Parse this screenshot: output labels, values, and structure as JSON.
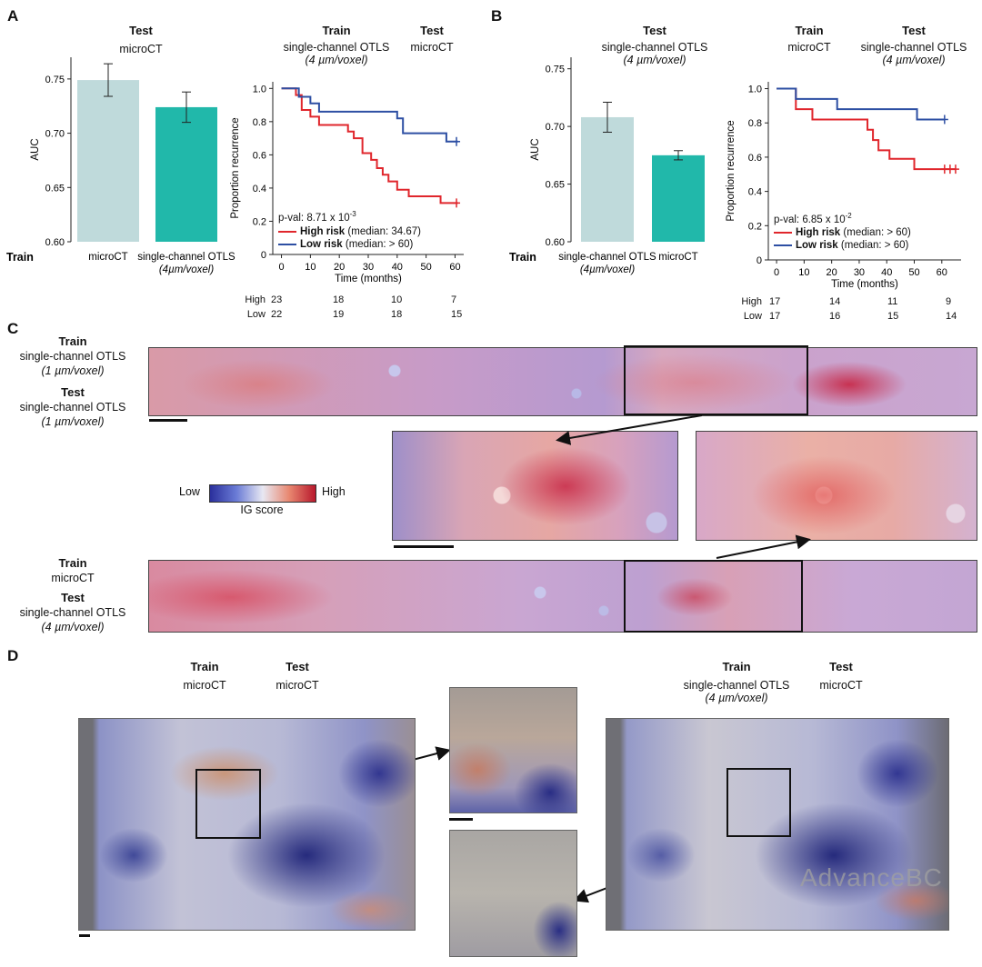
{
  "panels": {
    "A": {
      "label": "A",
      "bar": {
        "header_bold": "Test",
        "header": "microCT",
        "axis_label": "Train",
        "chart_data": {
          "type": "bar",
          "ylabel": "AUC",
          "ylim": [
            0.6,
            0.77
          ],
          "yticks": [
            "0.60",
            "0.65",
            "0.70",
            "0.75"
          ],
          "categories": [
            "microCT",
            "single-channel OTLS"
          ],
          "category_sub": [
            "",
            "(4µm/voxel)"
          ],
          "values": [
            0.749,
            0.724
          ],
          "error": [
            0.015,
            0.014
          ],
          "colors": [
            "#bfdadb",
            "#21b8aa"
          ]
        }
      },
      "km": {
        "train_bold": "Train",
        "train": "single-channel OTLS",
        "train_sub": "(4 µm/voxel)",
        "test_bold": "Test",
        "test": "microCT",
        "pval_prefix": "p-val: 8.71 x 10",
        "pval_exp": "-3",
        "legend_high_bold": "High risk",
        "legend_high": "(median: 34.67)",
        "legend_low_bold": "Low risk",
        "legend_low": "(median: > 60)",
        "risk_table": {
          "rows": [
            {
              "label": "High",
              "values": [
                "23",
                "18",
                "10",
                "7"
              ]
            },
            {
              "label": "Low",
              "values": [
                "22",
                "19",
                "18",
                "15"
              ]
            }
          ]
        },
        "chart_data": {
          "type": "line",
          "xlabel": "Time (months)",
          "ylabel": "Proportion recurrence",
          "xlim": [
            -3,
            63
          ],
          "ylim": [
            0,
            1.04
          ],
          "xticks": [
            "0",
            "10",
            "20",
            "30",
            "40",
            "50",
            "60"
          ],
          "yticks": [
            "0",
            "0.2",
            "0.4",
            "0.6",
            "0.8",
            "1.0"
          ],
          "series": [
            {
              "name": "High risk",
              "color": "#e0262c",
              "steps": [
                [
                  0,
                  1.0
                ],
                [
                  5,
                  0.96
                ],
                [
                  7,
                  0.87
                ],
                [
                  10,
                  0.83
                ],
                [
                  13,
                  0.78
                ],
                [
                  23,
                  0.74
                ],
                [
                  25,
                  0.7
                ],
                [
                  28,
                  0.61
                ],
                [
                  31,
                  0.57
                ],
                [
                  33,
                  0.52
                ],
                [
                  35,
                  0.48
                ],
                [
                  37,
                  0.44
                ],
                [
                  40,
                  0.39
                ],
                [
                  44,
                  0.35
                ],
                [
                  55,
                  0.31
                ],
                [
                  61,
                  0.31
                ]
              ],
              "censor": [
                60.5
              ]
            },
            {
              "name": "Low risk",
              "color": "#2d4fa3",
              "steps": [
                [
                  0,
                  1.0
                ],
                [
                  6,
                  0.95
                ],
                [
                  10,
                  0.91
                ],
                [
                  13,
                  0.86
                ],
                [
                  40,
                  0.82
                ],
                [
                  42,
                  0.73
                ],
                [
                  57,
                  0.68
                ],
                [
                  61,
                  0.68
                ]
              ],
              "censor": [
                60.5
              ]
            }
          ]
        }
      }
    },
    "B": {
      "label": "B",
      "bar": {
        "header_bold": "Test",
        "header": "single-channel OTLS",
        "header_sub": "(4 µm/voxel)",
        "axis_label": "Train",
        "chart_data": {
          "type": "bar",
          "ylabel": "AUC",
          "ylim": [
            0.6,
            0.76
          ],
          "yticks": [
            "0.60",
            "0.65",
            "0.70",
            "0.75"
          ],
          "categories": [
            "single-channel OTLS",
            "microCT"
          ],
          "category_sub": [
            "(4µm/voxel)",
            ""
          ],
          "values": [
            0.708,
            0.675
          ],
          "error": [
            0.013,
            0.004
          ],
          "colors": [
            "#bfdadb",
            "#21b8aa"
          ]
        }
      },
      "km": {
        "train_bold": "Train",
        "train": "microCT",
        "test_bold": "Test",
        "test": "single-channel OTLS",
        "test_sub": "(4 µm/voxel)",
        "pval_prefix": "p-val: 6.85 x 10",
        "pval_exp": "-2",
        "legend_high_bold": "High risk",
        "legend_high": "(median: > 60)",
        "legend_low_bold": "Low risk",
        "legend_low": "(median: > 60)",
        "risk_table": {
          "rows": [
            {
              "label": "High",
              "values": [
                "17",
                "14",
                "11",
                "9"
              ]
            },
            {
              "label": "Low",
              "values": [
                "17",
                "16",
                "15",
                "14"
              ]
            }
          ]
        },
        "chart_data": {
          "type": "line",
          "xlabel": "Time (months)",
          "ylabel": "Proportion recurrence",
          "xlim": [
            -3,
            67
          ],
          "ylim": [
            0,
            1.04
          ],
          "xticks": [
            "0",
            "10",
            "20",
            "30",
            "40",
            "50",
            "60"
          ],
          "yticks": [
            "0",
            "0.2",
            "0.4",
            "0.6",
            "0.8",
            "1.0"
          ],
          "series": [
            {
              "name": "High risk",
              "color": "#e0262c",
              "steps": [
                [
                  0,
                  1.0
                ],
                [
                  7,
                  0.88
                ],
                [
                  13,
                  0.82
                ],
                [
                  33,
                  0.76
                ],
                [
                  35,
                  0.7
                ],
                [
                  37,
                  0.64
                ],
                [
                  41,
                  0.59
                ],
                [
                  50,
                  0.53
                ],
                [
                  65,
                  0.53
                ]
              ],
              "censor": [
                61,
                63,
                65
              ]
            },
            {
              "name": "Low risk",
              "color": "#2d4fa3",
              "steps": [
                [
                  0,
                  1.0
                ],
                [
                  7,
                  0.94
                ],
                [
                  22,
                  0.88
                ],
                [
                  51,
                  0.82
                ],
                [
                  61,
                  0.82
                ]
              ],
              "censor": [
                61
              ]
            }
          ]
        }
      }
    },
    "C": {
      "label": "C",
      "top_block": {
        "train_bold": "Train",
        "train": "single-channel OTLS",
        "train_sub": "(1 µm/voxel)",
        "test_bold": "Test",
        "test": "single-channel OTLS",
        "test_sub": "(1 µm/voxel)"
      },
      "bottom_block": {
        "train_bold": "Train",
        "train": "microCT",
        "test_bold": "Test",
        "test": "single-channel OTLS",
        "test_sub": "(4 µm/voxel)"
      },
      "colorbar": {
        "low": "Low",
        "high": "High",
        "title": "IG score"
      }
    },
    "D": {
      "label": "D",
      "left": {
        "train_bold": "Train",
        "train": "microCT",
        "test_bold": "Test",
        "test": "microCT"
      },
      "right": {
        "train_bold": "Train",
        "train": "single-channel OTLS",
        "train_sub": "(4 µm/voxel)",
        "test_bold": "Test",
        "test": "microCT"
      }
    }
  },
  "watermark": "AdvanceBC"
}
